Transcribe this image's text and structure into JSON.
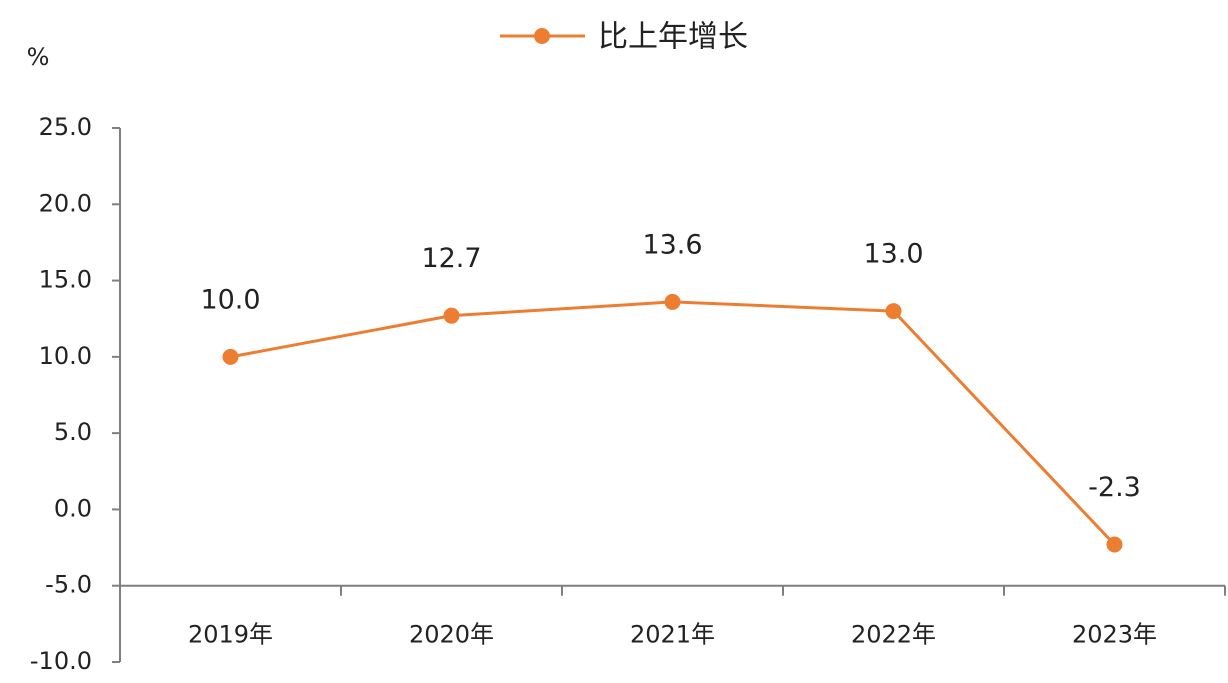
{
  "chart_data": {
    "type": "line",
    "y_unit": "%",
    "categories": [
      "2019年",
      "2020年",
      "2021年",
      "2022年",
      "2023年"
    ],
    "series": [
      {
        "name": "比上年增长",
        "color": "#ED7D31",
        "values": [
          10.0,
          12.7,
          13.6,
          13.0,
          -2.3
        ],
        "value_labels": [
          "10.0",
          "12.7",
          "13.6",
          "13.0",
          "-2.3"
        ]
      }
    ],
    "ylim": [
      -10,
      25
    ],
    "yticks": [
      {
        "value": -10,
        "label": "-10.0"
      },
      {
        "value": -5,
        "label": "-5.0"
      },
      {
        "value": 0,
        "label": "0.0"
      },
      {
        "value": 5,
        "label": "5.0"
      },
      {
        "value": 10,
        "label": "10.0"
      },
      {
        "value": 15,
        "label": "15.0"
      },
      {
        "value": 20,
        "label": "20.0"
      },
      {
        "value": 25,
        "label": "25.0"
      }
    ],
    "x_axis_crosses_at": -5,
    "legend": "top"
  }
}
